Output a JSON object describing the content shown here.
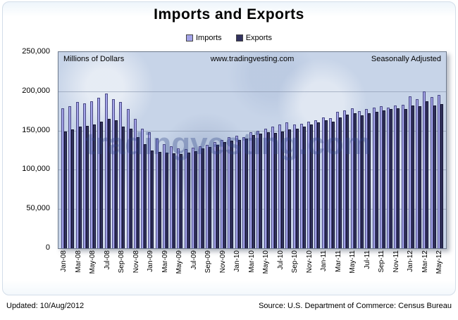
{
  "title": "Imports and Exports",
  "plot_annotations": {
    "left": "Millions of Dollars",
    "center": "www.tradingvesting.com",
    "right": "Seasonally Adjusted"
  },
  "watermark": "tradingvesting.com",
  "footer": {
    "updated": "Updated: 10/Aug/2012",
    "source": "Source: U.S. Department of Commerce: Census Bureau"
  },
  "colors": {
    "imports_fill": "#a3a3e8",
    "imports_border": "#4a4a85",
    "exports_fill": "#32325f",
    "exports_border": "#15152f",
    "plot_background": "#c7d4e8"
  },
  "chart_data": {
    "type": "bar",
    "title": "Imports and Exports",
    "ylabel": "Millions of Dollars",
    "ylim": [
      0,
      250000
    ],
    "ytick_labels": [
      "250,000",
      "200,000",
      "150,000",
      "100,000",
      "50,000",
      "0"
    ],
    "grid": true,
    "legend_position": "top",
    "x_label_every": 2,
    "categories": [
      "Jan-08",
      "Feb-08",
      "Mar-08",
      "Apr-08",
      "May-08",
      "Jun-08",
      "Jul-08",
      "Aug-08",
      "Sep-08",
      "Oct-08",
      "Nov-08",
      "Dec-08",
      "Jan-09",
      "Feb-09",
      "Mar-09",
      "Apr-09",
      "May-09",
      "Jun-09",
      "Jul-09",
      "Aug-09",
      "Sep-09",
      "Oct-09",
      "Nov-09",
      "Dec-09",
      "Jan-10",
      "Feb-10",
      "Mar-10",
      "Apr-10",
      "May-10",
      "Jun-10",
      "Jul-10",
      "Aug-10",
      "Sep-10",
      "Oct-10",
      "Nov-10",
      "Dec-10",
      "Jan-11",
      "Feb-11",
      "Mar-11",
      "Apr-11",
      "May-11",
      "Jun-11",
      "Jul-11",
      "Aug-11",
      "Sep-11",
      "Oct-11",
      "Nov-11",
      "Dec-11",
      "Jan-12",
      "Feb-12",
      "Mar-12",
      "Apr-12",
      "May-12"
    ],
    "series": [
      {
        "name": "Imports",
        "fill": "#a3a3e8",
        "border": "#4a4a85",
        "values": [
          178000,
          181000,
          186000,
          185000,
          187000,
          192000,
          197000,
          190000,
          186000,
          177000,
          165000,
          152000,
          148000,
          140000,
          133000,
          130000,
          127000,
          126000,
          128000,
          130000,
          132000,
          135000,
          138000,
          142000,
          143000,
          142000,
          148000,
          150000,
          152000,
          155000,
          158000,
          160000,
          158000,
          159000,
          161000,
          163000,
          167000,
          166000,
          174000,
          176000,
          178000,
          175000,
          177000,
          179000,
          181000,
          179000,
          182000,
          183000,
          194000,
          190000,
          200000,
          193000,
          195000
        ]
      },
      {
        "name": "Exports",
        "fill": "#32325f",
        "border": "#15152f",
        "values": [
          149000,
          151000,
          155000,
          156000,
          158000,
          161000,
          165000,
          163000,
          155000,
          152000,
          142000,
          133000,
          125000,
          123000,
          122000,
          121000,
          120000,
          122000,
          124000,
          127000,
          129000,
          132000,
          135000,
          137000,
          138000,
          140000,
          144000,
          146000,
          148000,
          147000,
          149000,
          151000,
          152000,
          155000,
          158000,
          160000,
          163000,
          161000,
          167000,
          170000,
          172000,
          169000,
          172000,
          174000,
          176000,
          177000,
          178000,
          177000,
          182000,
          181000,
          187000,
          182000,
          184000
        ]
      }
    ]
  }
}
